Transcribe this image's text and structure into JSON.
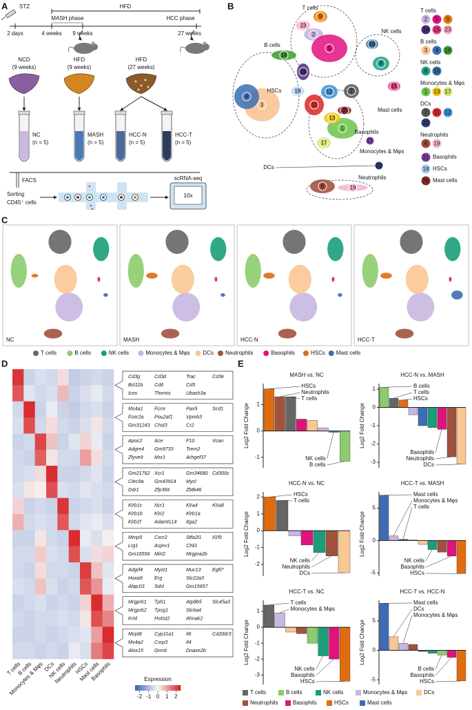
{
  "panels": [
    "A",
    "B",
    "C",
    "D",
    "E"
  ],
  "a": {
    "stz": "STZ",
    "timeline": [
      "2 days",
      "4 weeks",
      "9 weeks",
      "27 weeks"
    ],
    "phases": [
      "MASH phase",
      "HFD",
      "HCC phase"
    ],
    "diets": [
      {
        "label": "NCD",
        "sub": "(9 weeks)"
      },
      {
        "label": "HFD",
        "sub": "(9 weeks)"
      },
      {
        "label": "HFD",
        "sub": "(27 weeks)"
      }
    ],
    "groups": [
      {
        "label": "NC",
        "sub": "(n = 5)"
      },
      {
        "label": "MASH",
        "sub": "(n = 5)"
      },
      {
        "label": "HCC-N",
        "sub": "(n = 5)"
      },
      {
        "label": "HCC-T",
        "sub": "(n = 5)"
      }
    ],
    "facs": "FACS",
    "sorting": [
      "Sorting",
      "CD45⁺ cells"
    ],
    "seq": "scRNA-seq",
    "platform": "10x"
  },
  "cell_types": [
    {
      "name": "T cells",
      "color": "#666666",
      "clusters": [
        {
          "id": "2",
          "color": "#c3b3dd"
        },
        {
          "id": "5",
          "color": "#e0117f"
        },
        {
          "id": "9",
          "color": "#e07b00"
        },
        {
          "id": "14",
          "color": "#4b2a7b"
        },
        {
          "id": "15",
          "color": "#d83a7a"
        },
        {
          "id": "23",
          "color": "#f4a6b8"
        }
      ]
    },
    {
      "name": "B cells",
      "color": "#8ccc6e",
      "clusters": [
        {
          "id": "3",
          "color": "#f9c08f"
        },
        {
          "id": "4",
          "color": "#3a6fb5"
        },
        {
          "id": "16",
          "color": "#3e9b2f"
        }
      ]
    },
    {
      "name": "NK cells",
      "color": "#1a9e7a",
      "clusters": [
        {
          "id": "8",
          "color": "#1f9e89"
        },
        {
          "id": "10",
          "color": "#3a6c9a"
        }
      ]
    },
    {
      "name": "Monocytes & Mφs",
      "color": "#c7b8e0",
      "clusters": [
        {
          "id": "1",
          "color": "#6cc24a"
        },
        {
          "id": "13",
          "color": "#f0c419"
        },
        {
          "id": "17",
          "color": "#d6e36a"
        }
      ]
    },
    {
      "name": "DCs",
      "color": "#f9c794",
      "clusters": [
        {
          "id": "7",
          "color": "#555555"
        },
        {
          "id": "11",
          "color": "#d62728"
        },
        {
          "id": "12",
          "color": "#3d8fd1"
        },
        {
          "id": "22",
          "color": "#2e3d7a"
        }
      ]
    },
    {
      "name": "Neutrophils",
      "color": "#a0523d",
      "clusters": [
        {
          "id": "6",
          "color": "#a04a3a"
        },
        {
          "id": "19",
          "color": "#f2b5d4"
        }
      ]
    },
    {
      "name": "Basophils",
      "color": "#e0137c",
      "clusters": [
        {
          "id": "21",
          "color": "#7b3fa0"
        }
      ]
    },
    {
      "name": "HSCs",
      "color": "#e06c10",
      "clusters": [
        {
          "id": "18",
          "color": "#a9cdec"
        }
      ]
    },
    {
      "name": "Mast cells",
      "color": "#3e6db5",
      "clusters": [
        {
          "id": "20",
          "color": "#8b2a2a"
        }
      ]
    }
  ],
  "c": {
    "conditions": [
      "NC",
      "MASH",
      "HCC-N",
      "HCC-T"
    ]
  },
  "d": {
    "columns": [
      "T cells",
      "B cells",
      "Monocytes & Mφs",
      "DCs",
      "NK cells",
      "Neutrophils",
      "HSCs",
      "Mast cells",
      "Basophils"
    ],
    "gene_blocks": [
      [
        [
          "Cd3g",
          "Cd3d",
          "Trac",
          "Cd3e"
        ],
        [
          "Bcl11b",
          "Cd6",
          "Cd5"
        ],
        [
          "Icos",
          "Themis",
          "Ubash3a"
        ]
      ],
      [
        [
          "Ms4a1",
          "Fcmr",
          "Pax5",
          "Scd1"
        ],
        [
          "Fcer2a",
          "Pou2af1",
          "Vpreb3"
        ],
        [
          "Gm31243",
          "Chst3",
          "Cr2"
        ]
      ],
      [
        [
          "Apoc2",
          "Ace",
          "F10",
          "Vcan"
        ],
        [
          "Adgre4",
          "Gm9733",
          "Trem2"
        ],
        [
          "Zfyve9",
          "Msr1",
          "Arhgef37"
        ]
      ],
      [
        [
          "Gm21762",
          "Xcr1",
          "Gm34680",
          "Cd300c"
        ],
        [
          "Clec9a",
          "Gm43914",
          "Mycl"
        ],
        [
          "Ddr1",
          "Zfp366",
          "Zbtb46"
        ]
      ],
      [
        [
          "Klrb1c",
          "Ncr1",
          "Klra4",
          "Klra8"
        ],
        [
          "Klrb1b",
          "Klri2",
          "Klrb1a"
        ],
        [
          "Klrb1f",
          "Adamts14",
          "Itga2"
        ]
      ],
      [
        [
          "Mmp9",
          "Cxcr2",
          "Stfa2l1",
          "Il1f9"
        ],
        [
          "Lrg1",
          "Asprv1",
          "Chil1"
        ],
        [
          "Gm16556",
          "Mirt2",
          "Mrgpra2b"
        ]
      ],
      [
        [
          "Adgrf4",
          "Myct1",
          "Muc13",
          "Egfl7"
        ],
        [
          "Hoxa9",
          "Erg",
          "Slc22a3"
        ],
        [
          "Afap1l1",
          "Sdsl",
          "Gm15657"
        ]
      ],
      [
        [
          "Mrgprb1",
          "Tph1",
          "Atp8b5",
          "Slc45a3"
        ],
        [
          "Mrgprb2",
          "Tpsg1",
          "Slc6a4"
        ],
        [
          "Krt4",
          "Hs6st2",
          "Ahnak2"
        ]
      ],
      [
        [
          "Mcpt8",
          "Cyp11a1",
          "Il6",
          "Cd200r3"
        ],
        [
          "Ms4a2",
          "Csrp3",
          "Il4"
        ],
        [
          "Alox15",
          "Grm6",
          "Dnase2b"
        ]
      ]
    ],
    "matrix": [
      [
        2.2,
        -0.6,
        -0.4,
        -0.5,
        0.3,
        -0.7,
        -0.6,
        -0.5,
        -0.6
      ],
      [
        1.8,
        -0.3,
        -0.5,
        -0.4,
        0.7,
        -0.6,
        -0.4,
        -0.2,
        -0.5
      ],
      [
        -0.5,
        2.3,
        -0.6,
        -0.2,
        -0.6,
        -0.7,
        -0.5,
        -0.4,
        -0.6
      ],
      [
        -0.4,
        1.9,
        -0.5,
        0.3,
        -0.5,
        -0.6,
        -0.4,
        0.2,
        -0.5
      ],
      [
        -0.6,
        -0.5,
        2.0,
        0.6,
        -0.6,
        -0.3,
        0.4,
        -0.2,
        -0.6
      ],
      [
        -0.5,
        -0.6,
        1.7,
        0.2,
        -0.5,
        -0.5,
        1.0,
        0.3,
        -0.5
      ],
      [
        -0.5,
        -0.4,
        0.3,
        2.3,
        -0.6,
        -0.6,
        -0.5,
        -0.3,
        -0.6
      ],
      [
        -0.4,
        0.2,
        0.1,
        1.9,
        -0.4,
        -0.5,
        -0.3,
        -0.4,
        -0.5
      ],
      [
        0.4,
        -0.6,
        -0.5,
        -0.6,
        2.2,
        -0.6,
        -0.5,
        -0.4,
        -0.6
      ],
      [
        0.8,
        -0.5,
        -0.4,
        -0.5,
        1.8,
        -0.5,
        -0.3,
        -0.2,
        -0.4
      ],
      [
        -0.6,
        -0.6,
        0.2,
        -0.5,
        -0.6,
        2.3,
        -0.2,
        -0.4,
        0.1
      ],
      [
        -0.5,
        -0.5,
        0.5,
        -0.4,
        -0.5,
        1.9,
        -0.4,
        0.3,
        0.4
      ],
      [
        -0.5,
        -0.6,
        0.3,
        -0.5,
        -0.5,
        -0.6,
        2.1,
        0.6,
        -0.3
      ],
      [
        -0.4,
        -0.5,
        0.6,
        -0.4,
        -0.6,
        -0.5,
        1.8,
        1.1,
        -0.2
      ],
      [
        -0.6,
        -0.5,
        -0.4,
        -0.6,
        -0.5,
        -0.6,
        0.4,
        2.3,
        0.8
      ],
      [
        -0.5,
        -0.6,
        -0.5,
        -0.5,
        -0.4,
        -0.5,
        0.2,
        1.9,
        1.3
      ],
      [
        -0.6,
        -0.6,
        -0.5,
        -0.6,
        -0.5,
        -0.4,
        -0.3,
        1.0,
        2.3
      ],
      [
        -0.5,
        -0.5,
        -0.6,
        -0.5,
        -0.6,
        -0.2,
        -0.4,
        1.4,
        2.0
      ]
    ],
    "legend_title": "Expression",
    "legend_ticks": [
      -2,
      -1,
      0,
      1,
      2
    ],
    "scale_lim": [
      -2.5,
      2.5
    ]
  },
  "e": {
    "y_label": "Log2 Fold Change",
    "charts": [
      {
        "type": "bar",
        "title": "MASH vs. NC",
        "categories": [
          "HSCs",
          "Neutrophils",
          "T cells",
          "Basophils",
          "DCs",
          "Monocytes & Mφs",
          "NK cells",
          "B cells"
        ],
        "values": [
          1.6,
          1.3,
          1.3,
          0.45,
          0.4,
          0.12,
          -0.05,
          -1.15
        ],
        "ylim": [
          -1.4,
          1.8
        ],
        "yticks": [
          -1,
          0,
          1
        ],
        "annotations": [
          "HSCs",
          "Neutrophils",
          "T cells",
          "NK cells",
          "B cells"
        ]
      },
      {
        "type": "bar",
        "title": "HCC-N vs. MASH",
        "categories": [
          "B cells",
          "T cells",
          "HSCs",
          "Monocytes & Mφs",
          "Mast cells",
          "NK cells",
          "Basophils",
          "Neutrophils",
          "DCs"
        ],
        "values": [
          1.1,
          0.5,
          0.4,
          -0.4,
          -1.0,
          -1.1,
          -1.2,
          -2.7,
          -3.1
        ],
        "ylim": [
          -3.3,
          1.3
        ],
        "yticks": [
          -3,
          -2,
          -1,
          0,
          1
        ],
        "annotations": [
          "B cells",
          "T cells",
          "HSCs",
          "Basophils",
          "Neutrophils",
          "DCs"
        ]
      },
      {
        "type": "bar",
        "title": "HCC-N vs. NC",
        "categories": [
          "HSCs",
          "T cells",
          "Monocytes & Mφs",
          "Basophils",
          "NK cells",
          "Neutrophils",
          "DCs"
        ],
        "values": [
          2.0,
          1.8,
          -0.3,
          -0.85,
          -1.3,
          -1.5,
          -2.5
        ],
        "ylim": [
          -2.7,
          2.3
        ],
        "yticks": [
          -2,
          -1,
          0,
          1,
          2
        ],
        "annotations": [
          "HSCs",
          "T cells",
          "NK cells",
          "Neutrophils",
          "DCs"
        ]
      },
      {
        "type": "bar",
        "title": "HCC-T vs. MASH",
        "categories": [
          "Mast cells",
          "Monocytes & Mφs",
          "T cells",
          "B cells",
          "DCs",
          "NK cells",
          "Neutrophils",
          "Basophils",
          "HSCs"
        ],
        "values": [
          7.0,
          0.7,
          0.2,
          0.1,
          -0.6,
          -1.4,
          -1.8,
          -2.4,
          -5.1
        ],
        "ylim": [
          -5.5,
          7.5
        ],
        "yticks": [
          -5,
          0,
          5
        ],
        "annotations": [
          "Mast cells",
          "Monocytes & Mφs",
          "T cells",
          "NK cells",
          "Basophils",
          "HSCs"
        ]
      },
      {
        "type": "bar",
        "title": "HCC-T vs. NC",
        "categories": [
          "T cells",
          "Monocytes & Mφs",
          "DCs",
          "Neutrophils",
          "B cells",
          "NK cells",
          "Basophils",
          "HSCs"
        ],
        "values": [
          1.4,
          0.9,
          -0.3,
          -0.4,
          -1.0,
          -1.8,
          -2.0,
          -3.4
        ],
        "ylim": [
          -3.6,
          1.7
        ],
        "yticks": [
          -3,
          -2,
          -1,
          0,
          1
        ],
        "annotations": [
          "T cells",
          "Monocytes & Mφs",
          "NK cells",
          "Basophils",
          "HSCs"
        ]
      },
      {
        "type": "bar",
        "title": "HCC-T vs. HCC-N",
        "categories": [
          "Mast cells",
          "DCs",
          "Monocytes & Mφs",
          "Neutrophils",
          "T cells",
          "NK cells",
          "B cells",
          "Basophils",
          "HSCs"
        ],
        "values": [
          8.0,
          2.3,
          1.2,
          1.0,
          -0.2,
          -0.5,
          -0.8,
          -1.2,
          -5.2
        ],
        "ylim": [
          -5.8,
          8.5
        ],
        "yticks": [
          -5,
          0,
          5
        ],
        "annotations": [
          "Mast cells",
          "DCs",
          "Monocytes & Mφs",
          "B cells",
          "Basophils",
          "HSCs"
        ]
      }
    ]
  }
}
